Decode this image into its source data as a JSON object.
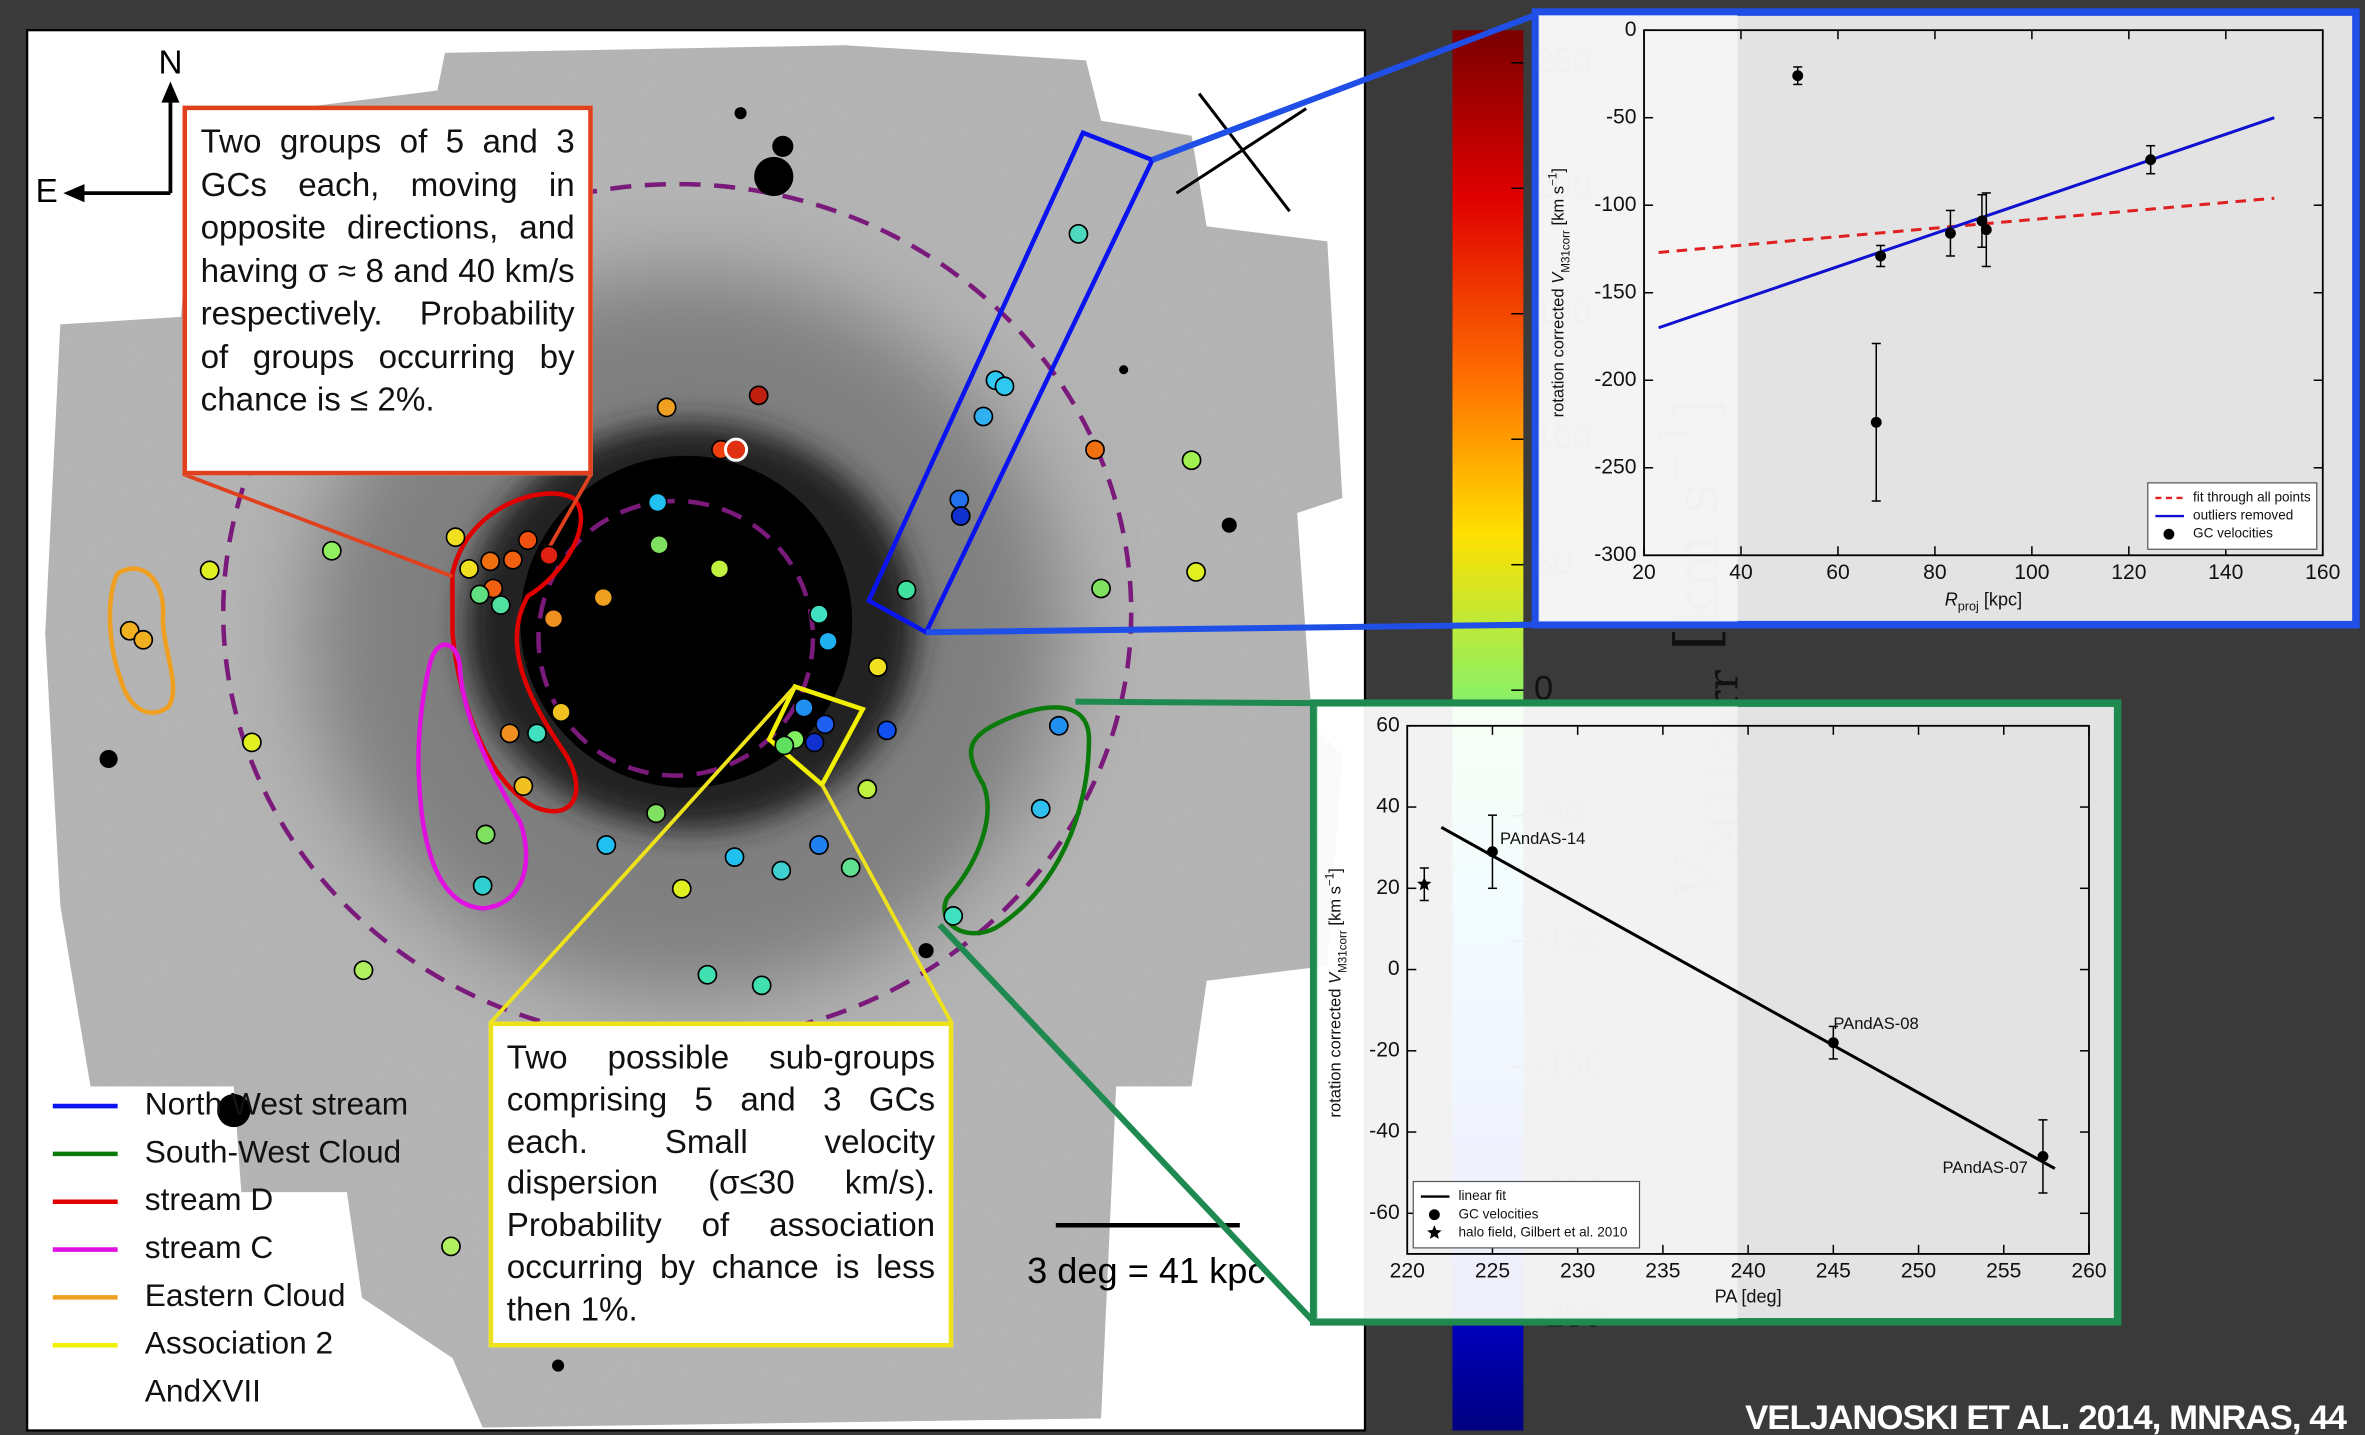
{
  "map": {
    "compass": {
      "north": "N",
      "east": "E"
    },
    "annotation_groups": "Two groups of 5 and 3 GCs each, moving in opposite directions, and having σ ≈ 8 and 40 km/s respectively. Probability of groups occurring by chance is ≤ 2%.",
    "annotation_association": "Two possible sub-groups comprising 5 and 3 GCs each. Small velocity dispersion (σ≤30 km/s). Probability of association occurring by chance is less then 1%.",
    "legend": [
      {
        "name": "North West stream",
        "color": "#0a14f0"
      },
      {
        "name": "South-West Cloud",
        "color": "#0a7a0a"
      },
      {
        "name": "stream D",
        "color": "#e00000"
      },
      {
        "name": "stream C",
        "color": "#e010e0"
      },
      {
        "name": "Eastern Cloud",
        "color": "#f0a020"
      },
      {
        "name": "Association 2",
        "color": "#f0f000"
      },
      {
        "name": "AndXVII",
        "color": "#ffffff"
      }
    ],
    "scale_bar": "3 deg = 41 kpc"
  },
  "colorbar": {
    "label": [
      "V",
      "M31corr",
      " [km s",
      "−1",
      "]"
    ],
    "lim": [
      -295,
      263
    ],
    "ticks": [
      250,
      200,
      150,
      100,
      50,
      0,
      -50,
      -100,
      -150,
      -200,
      -250
    ]
  },
  "chart_data": [
    {
      "type": "scatter",
      "xlabel": [
        "R",
        "proj",
        " [kpc]"
      ],
      "ylabel": [
        "rotation corrected ",
        "V",
        "M31corr",
        " [km s",
        "−1",
        "]"
      ],
      "xlim": [
        20,
        160
      ],
      "xticks": [
        20,
        40,
        60,
        80,
        100,
        120,
        140,
        160
      ],
      "ylim": [
        -300,
        0
      ],
      "yticks": [
        0,
        -50,
        -100,
        -150,
        -200,
        -250,
        -300
      ],
      "legend": "lower right",
      "series": [
        {
          "name": "fit through all points",
          "kind": "line",
          "style": "dashed",
          "color": "#e02020",
          "x": [
            23,
            150
          ],
          "values": [
            -127,
            -96
          ]
        },
        {
          "name": "outliers removed",
          "kind": "line",
          "style": "solid",
          "color": "#1010d0",
          "x": [
            23,
            150
          ],
          "values": [
            -170,
            -50
          ]
        },
        {
          "name": "GC velocities",
          "kind": "errorbar",
          "marker": "circle",
          "color": "#000000",
          "x": [
            51.7,
            68.8,
            67.9,
            83.2,
            89.7,
            90.6,
            124.5
          ],
          "values": [
            -26,
            -129,
            -224,
            -116,
            -109,
            -114,
            -74
          ],
          "errors": [
            5,
            6,
            45,
            13,
            15,
            21,
            8
          ]
        }
      ]
    },
    {
      "type": "scatter",
      "xlabel": [
        "PA [deg]"
      ],
      "ylabel": [
        "rotation corrected ",
        "V",
        "M31corr",
        " [km s",
        "−1",
        "]"
      ],
      "xlim": [
        220,
        260
      ],
      "xticks": [
        220,
        225,
        230,
        235,
        240,
        245,
        250,
        255,
        260
      ],
      "ylim": [
        -70,
        60
      ],
      "yticks": [
        60,
        40,
        20,
        0,
        -20,
        -40,
        -60
      ],
      "legend": "lower left",
      "series": [
        {
          "name": "linear fit",
          "kind": "line",
          "style": "solid",
          "color": "#000000",
          "x": [
            222,
            258
          ],
          "values": [
            35,
            -49
          ]
        },
        {
          "name": "GC velocities",
          "kind": "errorbar",
          "marker": "circle",
          "color": "#000000",
          "x": [
            225,
            245,
            257.3
          ],
          "values": [
            29,
            -18,
            -46
          ],
          "errors": [
            9,
            4,
            9
          ],
          "labels": [
            "PAndAS-14",
            "PAndAS-08",
            "PAndAS-07"
          ]
        },
        {
          "name": "halo field, Gilbert et al. 2010",
          "kind": "errorbar",
          "marker": "star",
          "color": "#000000",
          "x": [
            221
          ],
          "values": [
            21
          ],
          "errors": [
            4
          ]
        }
      ]
    }
  ],
  "citation": "VELJANOSKI ET AL. 2014, MNRAS, 44"
}
